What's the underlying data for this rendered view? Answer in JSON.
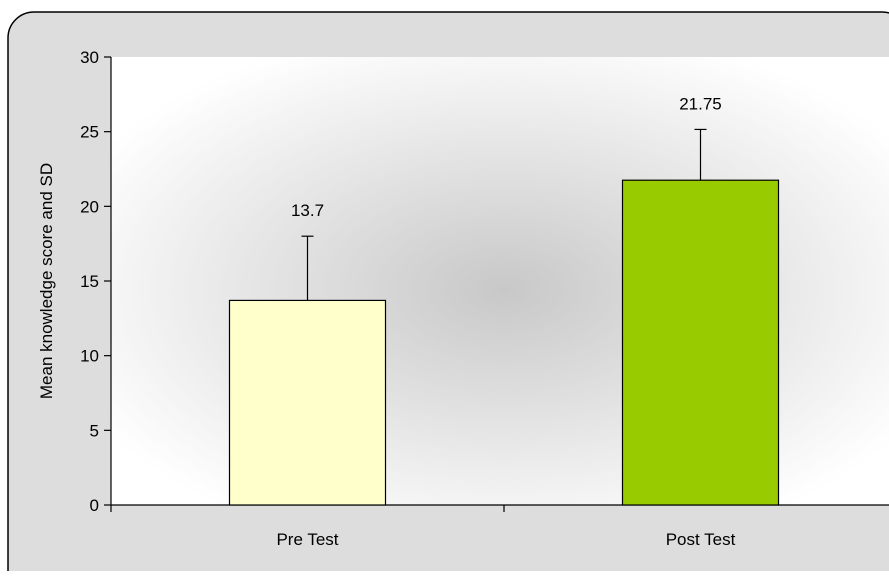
{
  "chart_data": {
    "type": "bar",
    "categories": [
      "Pre Test",
      "Post Test"
    ],
    "values": [
      13.7,
      21.75
    ],
    "error_sd": [
      4.3,
      3.4
    ],
    "data_labels": [
      "13.7",
      "21.75"
    ],
    "ylabel": "Mean knowledge score and SD",
    "xlabel": "",
    "ylim": [
      0,
      30
    ],
    "yticks": [
      0,
      5,
      10,
      15,
      20,
      25,
      30
    ],
    "grid": false,
    "legend": "none",
    "colors": {
      "bars": [
        "#FFFFCC",
        "#99CC00"
      ],
      "outline": "#000000",
      "frame_fill": "#DDDDDD",
      "plot_center": "#C8C8C8",
      "plot_edge": "#FFFFFF"
    }
  }
}
